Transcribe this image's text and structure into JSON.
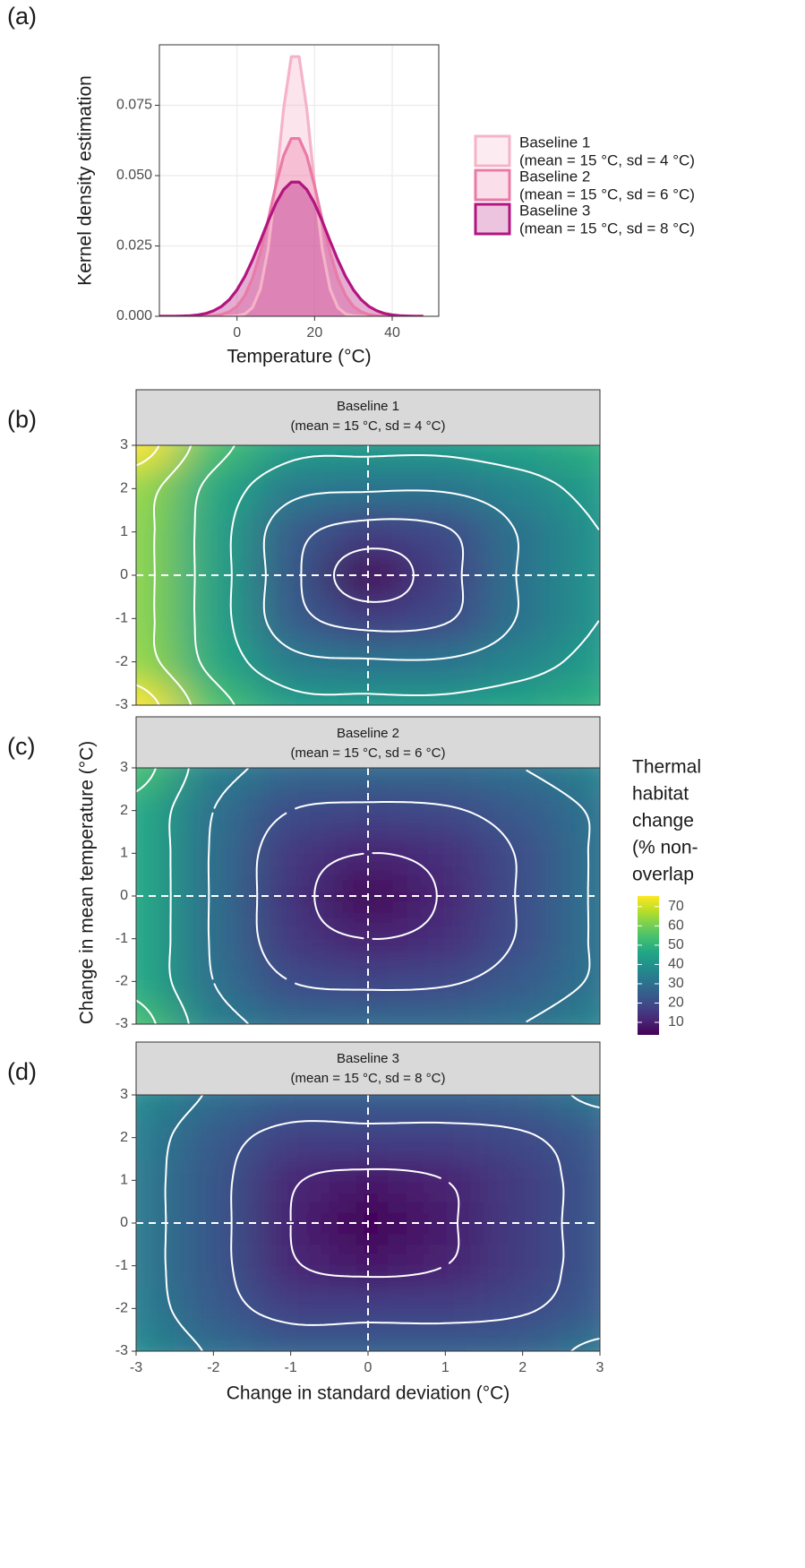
{
  "chart_data": [
    {
      "type": "density",
      "panel_label": "(a)",
      "xlabel": "Temperature (°C)",
      "ylabel": "Kernel density estimation",
      "x": [
        -20,
        -18,
        -16,
        -14,
        -12,
        -10,
        -8,
        -6,
        -4,
        -2,
        0,
        2,
        4,
        6,
        8,
        10,
        12,
        14,
        16,
        18,
        20,
        22,
        24,
        26,
        28,
        30,
        32,
        34,
        36,
        38,
        40,
        42,
        44,
        46,
        48
      ],
      "xlim": [
        -20,
        52
      ],
      "xticks": [
        0,
        20,
        40
      ],
      "ylim": [
        0,
        0.0965
      ],
      "yticks": [
        {
          "value": 0,
          "label": "0.000"
        },
        {
          "value": 0.025,
          "label": "0.025"
        },
        {
          "value": 0.05,
          "label": "0.050"
        },
        {
          "value": 0.075,
          "label": "0.075"
        }
      ],
      "grid": true,
      "legend": "right",
      "series": [
        {
          "name": "Baseline 1",
          "description": "(mean = 15 °C, sd = 4 °C)",
          "color": "#f5b3c8",
          "values": [
            0,
            0,
            0,
            0,
            0,
            0,
            0,
            0,
            0,
            0,
            0.0002,
            0.0008,
            0.0031,
            0.0096,
            0.0237,
            0.0467,
            0.0736,
            0.0923,
            0.0923,
            0.0736,
            0.0467,
            0.0237,
            0.0096,
            0.0031,
            0.0008,
            0.0002,
            0,
            0,
            0,
            0,
            0,
            0,
            0,
            0,
            0
          ]
        },
        {
          "name": "Baseline 2",
          "description": "(mean = 15 °C, sd = 6 °C)",
          "color": "#ea7aa6",
          "values": [
            0,
            0,
            0,
            0,
            0,
            0,
            0.0001,
            0.0002,
            0.0006,
            0.0016,
            0.0035,
            0.0073,
            0.0135,
            0.0225,
            0.034,
            0.0464,
            0.057,
            0.0632,
            0.0632,
            0.057,
            0.0464,
            0.034,
            0.0225,
            0.0135,
            0.0073,
            0.0035,
            0.0016,
            0.0006,
            0.0002,
            0.0001,
            0,
            0,
            0,
            0,
            0
          ]
        },
        {
          "name": "Baseline 3",
          "description": "(mean = 15 °C, sd = 8 °C)",
          "color": "#b3157f",
          "values": [
            0,
            0,
            0,
            0.0001,
            0.0002,
            0.0005,
            0.001,
            0.002,
            0.0035,
            0.0059,
            0.0094,
            0.0141,
            0.02,
            0.0267,
            0.0337,
            0.0401,
            0.045,
            0.0477,
            0.0477,
            0.045,
            0.0401,
            0.0337,
            0.0267,
            0.02,
            0.0141,
            0.0094,
            0.0059,
            0.0035,
            0.002,
            0.001,
            0.0005,
            0.0002,
            0.0001,
            0,
            0
          ]
        }
      ]
    },
    {
      "type": "heatmap",
      "panel_label": "(b)",
      "strip": [
        "Baseline 1",
        "(mean = 15 °C, sd = 4 °C)"
      ],
      "x": [
        -3,
        -2,
        -1,
        0,
        1,
        2,
        3
      ],
      "y": [
        -3,
        -2,
        -1,
        0,
        1,
        2,
        3
      ],
      "xlim": [
        -3,
        3
      ],
      "ylim": [
        -3,
        3
      ],
      "yticks": [
        -3,
        -2,
        -1,
        0,
        1,
        2,
        3
      ],
      "hline": 0,
      "vline": 0,
      "contours": true,
      "z": [
        [
          75,
          54,
          43,
          42,
          42,
          45,
          49
        ],
        [
          64,
          47,
          33,
          31,
          31,
          36,
          43
        ],
        [
          63,
          45,
          24,
          16,
          19,
          31,
          40
        ],
        [
          63,
          45,
          23,
          4,
          17,
          31,
          40
        ],
        [
          63,
          45,
          24,
          16,
          19,
          31,
          40
        ],
        [
          64,
          47,
          33,
          31,
          31,
          36,
          43
        ],
        [
          75,
          54,
          43,
          42,
          42,
          45,
          49
        ]
      ]
    },
    {
      "type": "heatmap",
      "panel_label": "(c)",
      "strip": [
        "Baseline 2",
        "(mean = 15 °C, sd = 6 °C)"
      ],
      "ylabel": "Change in mean temperature (°C)",
      "x": [
        -3,
        -2,
        -1,
        0,
        1,
        2,
        3
      ],
      "y": [
        -3,
        -2,
        -1,
        0,
        1,
        2,
        3
      ],
      "xlim": [
        -3,
        3
      ],
      "ylim": [
        -3,
        3
      ],
      "yticks": [
        -3,
        -2,
        -1,
        0,
        1,
        2,
        3
      ],
      "hline": 0,
      "vline": 0,
      "contours": true,
      "z": [
        [
          54,
          34,
          28,
          28,
          28,
          30,
          35
        ],
        [
          47,
          30,
          20,
          18,
          19,
          24,
          31
        ],
        [
          47,
          29,
          15,
          10,
          13,
          21,
          31
        ],
        [
          47,
          29,
          14,
          4,
          11,
          21,
          31
        ],
        [
          47,
          29,
          15,
          10,
          13,
          21,
          31
        ],
        [
          47,
          30,
          20,
          18,
          19,
          24,
          31
        ],
        [
          54,
          34,
          28,
          28,
          28,
          30,
          35
        ]
      ],
      "colorbar": {
        "title": [
          "Thermal",
          "habitat",
          "change",
          "(% non-",
          "overlap"
        ],
        "zlim": [
          3.5,
          75.5
        ],
        "ticks": [
          10,
          20,
          30,
          40,
          50,
          60,
          70
        ]
      }
    },
    {
      "type": "heatmap",
      "panel_label": "(d)",
      "strip": [
        "Baseline 3",
        "(mean = 15 °C, sd = 8 °C)"
      ],
      "xlabel": "Change in standard deviation (°C)",
      "x": [
        -3,
        -2,
        -1,
        0,
        1,
        2,
        3
      ],
      "y": [
        -3,
        -2,
        -1,
        0,
        1,
        2,
        3
      ],
      "xlim": [
        -3,
        3
      ],
      "ylim": [
        -3,
        3
      ],
      "xticks": [
        -3,
        -2,
        -1,
        0,
        1,
        2,
        3
      ],
      "yticks": [
        -3,
        -2,
        -1,
        0,
        1,
        2,
        3
      ],
      "hline": 0,
      "vline": 0,
      "contours": true,
      "z": [
        [
          37,
          29,
          25,
          25,
          25,
          26,
          32
        ],
        [
          34,
          24,
          17,
          17,
          17,
          19,
          24
        ],
        [
          33,
          23,
          11,
          8,
          10,
          16,
          23
        ],
        [
          33,
          23,
          10,
          4,
          9,
          16,
          23
        ],
        [
          33,
          23,
          11,
          8,
          10,
          16,
          23
        ],
        [
          34,
          24,
          17,
          17,
          17,
          19,
          24
        ],
        [
          37,
          29,
          25,
          25,
          25,
          26,
          32
        ]
      ]
    }
  ]
}
